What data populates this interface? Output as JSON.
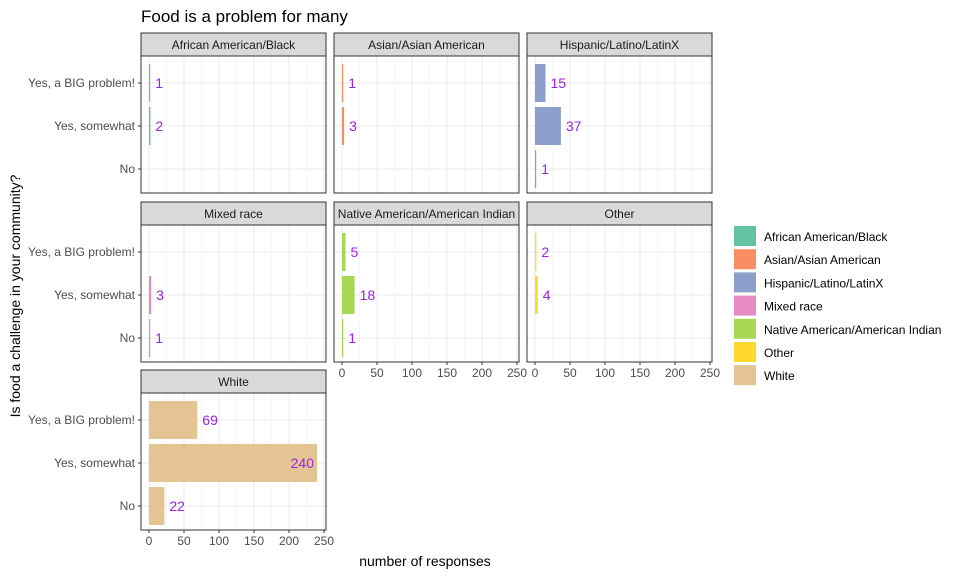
{
  "chart_data": {
    "type": "bar",
    "orientation": "horizontal",
    "title": "Food is a problem for many",
    "xlabel": "number of responses",
    "ylabel": "Is food a challenge in your community?",
    "categories": [
      "Yes, a BIG problem!",
      "Yes, somewhat",
      "No"
    ],
    "xlim": [
      0,
      250
    ],
    "x_ticks": [
      0,
      50,
      100,
      150,
      200,
      250
    ],
    "grid": true,
    "legend_position": "right",
    "facets": [
      {
        "name": "African American/Black",
        "color": "#66c2a5",
        "values": [
          1,
          2,
          null
        ]
      },
      {
        "name": "Asian/Asian American",
        "color": "#fc8d62",
        "values": [
          1,
          3,
          null
        ]
      },
      {
        "name": "Hispanic/Latino/LatinX",
        "color": "#8da0cb",
        "values": [
          15,
          37,
          1
        ]
      },
      {
        "name": "Mixed race",
        "color": "#e78ac3",
        "values": [
          null,
          3,
          1
        ]
      },
      {
        "name": "Native American/American Indian",
        "color": "#a6d854",
        "values": [
          5,
          18,
          1
        ]
      },
      {
        "name": "Other",
        "color": "#ffd92f",
        "values": [
          2,
          4,
          null
        ]
      },
      {
        "name": "White",
        "color": "#e5c494",
        "values": [
          69,
          240,
          22
        ]
      }
    ]
  }
}
